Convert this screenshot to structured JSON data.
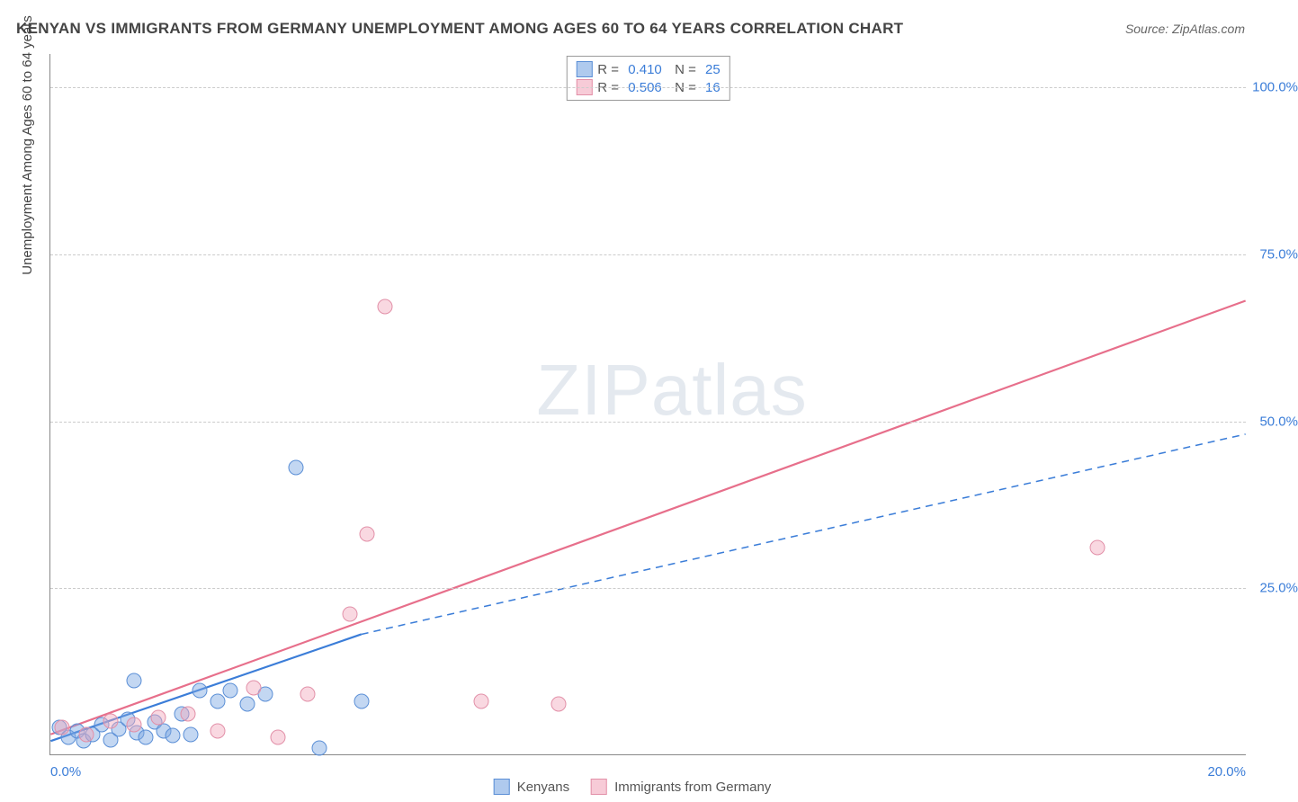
{
  "title": "KENYAN VS IMMIGRANTS FROM GERMANY UNEMPLOYMENT AMONG AGES 60 TO 64 YEARS CORRELATION CHART",
  "source": "Source: ZipAtlas.com",
  "watermark": "ZIPatlas",
  "chart": {
    "type": "scatter",
    "background_color": "#ffffff",
    "grid_color": "#cccccc",
    "x_axis": {
      "min": 0,
      "max": 20,
      "origin_label": "0.0%",
      "max_label": "20.0%"
    },
    "y_axis": {
      "title": "Unemployment Among Ages 60 to 64 years",
      "min": 0,
      "max": 105,
      "ticks": [
        25,
        50,
        75,
        100
      ],
      "tick_labels": [
        "25.0%",
        "50.0%",
        "75.0%",
        "100.0%"
      ]
    },
    "series": [
      {
        "name": "Kenyans",
        "color_fill": "rgba(121,167,227,0.45)",
        "color_stroke": "#5b8fd6",
        "marker_size": 17,
        "R": "0.410",
        "N": "25",
        "trend": {
          "x1": 0,
          "y1": 2,
          "x2": 5.2,
          "y2": 18,
          "style": "solid",
          "color": "#3b7dd8",
          "width": 2.2,
          "extend": {
            "x2": 20,
            "y2": 48,
            "style": "dashed"
          }
        },
        "points": [
          {
            "x": 0.15,
            "y": 4
          },
          {
            "x": 0.3,
            "y": 2.5
          },
          {
            "x": 0.45,
            "y": 3.5
          },
          {
            "x": 0.55,
            "y": 2
          },
          {
            "x": 0.7,
            "y": 3
          },
          {
            "x": 0.85,
            "y": 4.5
          },
          {
            "x": 1.0,
            "y": 2.2
          },
          {
            "x": 1.15,
            "y": 3.8
          },
          {
            "x": 1.3,
            "y": 5.2
          },
          {
            "x": 1.45,
            "y": 3.2
          },
          {
            "x": 1.6,
            "y": 2.5
          },
          {
            "x": 1.75,
            "y": 4.8
          },
          {
            "x": 1.4,
            "y": 11
          },
          {
            "x": 1.9,
            "y": 3.5
          },
          {
            "x": 2.05,
            "y": 2.8
          },
          {
            "x": 2.2,
            "y": 6
          },
          {
            "x": 2.35,
            "y": 3
          },
          {
            "x": 2.5,
            "y": 9.5
          },
          {
            "x": 2.8,
            "y": 8
          },
          {
            "x": 3.0,
            "y": 9.5
          },
          {
            "x": 3.3,
            "y": 7.5
          },
          {
            "x": 4.1,
            "y": 43
          },
          {
            "x": 4.5,
            "y": 1
          },
          {
            "x": 5.2,
            "y": 8
          },
          {
            "x": 3.6,
            "y": 9
          }
        ]
      },
      {
        "name": "Immigrants from Germany",
        "color_fill": "rgba(241,169,188,0.45)",
        "color_stroke": "#e290a8",
        "marker_size": 17,
        "R": "0.506",
        "N": "16",
        "trend": {
          "x1": 0,
          "y1": 3,
          "x2": 20,
          "y2": 68,
          "style": "solid",
          "color": "#e76f8b",
          "width": 2.2
        },
        "points": [
          {
            "x": 0.2,
            "y": 4
          },
          {
            "x": 0.6,
            "y": 3
          },
          {
            "x": 1.0,
            "y": 5
          },
          {
            "x": 1.4,
            "y": 4.5
          },
          {
            "x": 1.8,
            "y": 5.5
          },
          {
            "x": 2.3,
            "y": 6
          },
          {
            "x": 2.8,
            "y": 3.5
          },
          {
            "x": 3.4,
            "y": 10
          },
          {
            "x": 3.8,
            "y": 2.5
          },
          {
            "x": 4.3,
            "y": 9
          },
          {
            "x": 5.0,
            "y": 21
          },
          {
            "x": 5.3,
            "y": 33
          },
          {
            "x": 5.6,
            "y": 67
          },
          {
            "x": 7.2,
            "y": 8
          },
          {
            "x": 8.5,
            "y": 7.5
          },
          {
            "x": 17.5,
            "y": 31
          }
        ]
      }
    ],
    "legend_bottom": [
      {
        "swatch": "blue",
        "label": "Kenyans"
      },
      {
        "swatch": "pink",
        "label": "Immigrants from Germany"
      }
    ]
  }
}
